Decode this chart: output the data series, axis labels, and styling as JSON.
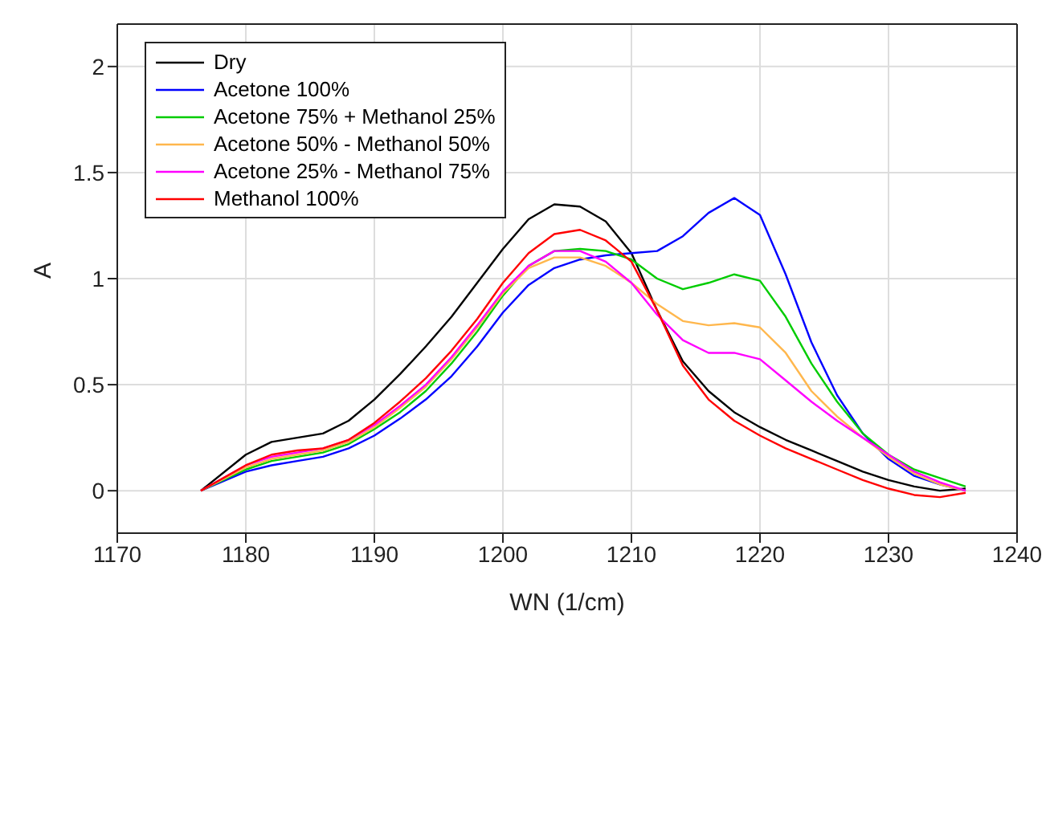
{
  "chart_data": {
    "type": "line",
    "xlabel": "WN (1/cm)",
    "ylabel": "A",
    "x": [
      1176.5,
      1180,
      1182,
      1184,
      1186,
      1188,
      1190,
      1192,
      1194,
      1196,
      1198,
      1200,
      1202,
      1204,
      1206,
      1208,
      1210,
      1212,
      1214,
      1216,
      1218,
      1220,
      1222,
      1224,
      1226,
      1228,
      1230,
      1232,
      1234,
      1236
    ],
    "series": [
      {
        "name": "Dry",
        "color": "#000000",
        "values": [
          0,
          0.17,
          0.23,
          0.25,
          0.27,
          0.33,
          0.43,
          0.55,
          0.68,
          0.82,
          0.98,
          1.14,
          1.28,
          1.35,
          1.34,
          1.27,
          1.12,
          0.85,
          0.61,
          0.47,
          0.37,
          0.3,
          0.24,
          0.19,
          0.14,
          0.09,
          0.05,
          0.02,
          0.0,
          0.01
        ]
      },
      {
        "name": "Acetone 100%",
        "color": "#0000ff",
        "values": [
          0,
          0.09,
          0.12,
          0.14,
          0.16,
          0.2,
          0.26,
          0.34,
          0.43,
          0.54,
          0.68,
          0.84,
          0.97,
          1.05,
          1.09,
          1.11,
          1.12,
          1.13,
          1.2,
          1.31,
          1.38,
          1.3,
          1.02,
          0.7,
          0.45,
          0.27,
          0.15,
          0.07,
          0.03,
          0.0
        ]
      },
      {
        "name": "Acetone 75% + Methanol 25%",
        "color": "#00cc00",
        "values": [
          0,
          0.1,
          0.14,
          0.16,
          0.18,
          0.22,
          0.29,
          0.37,
          0.47,
          0.6,
          0.75,
          0.92,
          1.06,
          1.13,
          1.14,
          1.13,
          1.09,
          1.0,
          0.95,
          0.98,
          1.02,
          0.99,
          0.82,
          0.6,
          0.42,
          0.27,
          0.17,
          0.1,
          0.06,
          0.02
        ]
      },
      {
        "name": "Acetone 50% - Methanol 50%",
        "color": "#ffb74d",
        "values": [
          0,
          0.11,
          0.15,
          0.17,
          0.19,
          0.23,
          0.3,
          0.39,
          0.49,
          0.62,
          0.77,
          0.93,
          1.05,
          1.1,
          1.1,
          1.06,
          0.98,
          0.88,
          0.8,
          0.78,
          0.79,
          0.77,
          0.65,
          0.47,
          0.35,
          0.25,
          0.16,
          0.08,
          0.03,
          0.0
        ]
      },
      {
        "name": "Acetone 25% - Methanol 75%",
        "color": "#ff00ff",
        "values": [
          0,
          0.12,
          0.16,
          0.18,
          0.2,
          0.24,
          0.31,
          0.4,
          0.5,
          0.63,
          0.78,
          0.94,
          1.06,
          1.13,
          1.13,
          1.08,
          0.98,
          0.83,
          0.71,
          0.65,
          0.65,
          0.62,
          0.52,
          0.42,
          0.33,
          0.25,
          0.17,
          0.09,
          0.04,
          0.0
        ]
      },
      {
        "name": "Methanol 100%",
        "color": "#ff0000",
        "values": [
          0,
          0.12,
          0.17,
          0.19,
          0.2,
          0.24,
          0.32,
          0.42,
          0.53,
          0.66,
          0.81,
          0.98,
          1.12,
          1.21,
          1.23,
          1.18,
          1.08,
          0.85,
          0.59,
          0.43,
          0.33,
          0.26,
          0.2,
          0.15,
          0.1,
          0.05,
          0.01,
          -0.02,
          -0.03,
          -0.01
        ]
      }
    ],
    "xlim": [
      1170,
      1240
    ],
    "xticks": [
      1170,
      1180,
      1190,
      1200,
      1210,
      1220,
      1230,
      1240
    ],
    "ylim": [
      -0.2,
      2.2
    ],
    "yticks": [
      0,
      0.5,
      1,
      1.5,
      2
    ],
    "grid": true,
    "legend": "top left",
    "marker": "none",
    "line_style": "solid"
  }
}
